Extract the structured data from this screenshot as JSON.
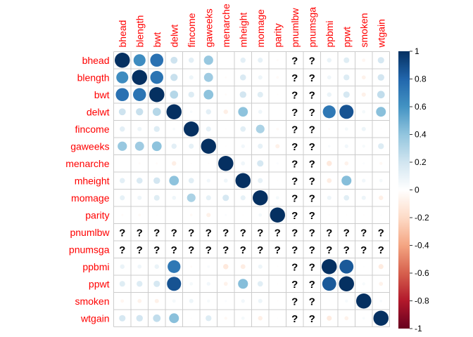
{
  "chart_data": {
    "type": "heatmap",
    "style": "correlation-circles",
    "variables": [
      "bhead",
      "blength",
      "bwt",
      "delwt",
      "fincome",
      "gaweeks",
      "menarche",
      "mheight",
      "momage",
      "parity",
      "pnumlbw",
      "pnumsga",
      "ppbmi",
      "ppwt",
      "smoken",
      "wtgain"
    ],
    "missing_symbol": "?",
    "missing_variables": [
      "pnumlbw",
      "pnumsga"
    ],
    "matrix": [
      [
        1.0,
        0.63,
        0.75,
        0.21,
        0.12,
        0.38,
        0.0,
        0.12,
        0.11,
        -0.02,
        null,
        null,
        0.09,
        0.14,
        -0.05,
        0.18
      ],
      [
        0.63,
        1.0,
        0.74,
        0.23,
        0.08,
        0.36,
        -0.02,
        0.16,
        0.08,
        -0.03,
        null,
        null,
        0.07,
        0.15,
        -0.07,
        0.19
      ],
      [
        0.75,
        0.74,
        1.0,
        0.29,
        0.15,
        0.41,
        -0.02,
        0.19,
        0.14,
        -0.01,
        null,
        null,
        0.09,
        0.18,
        -0.08,
        0.25
      ],
      [
        0.21,
        0.23,
        0.29,
        1.0,
        0.03,
        0.12,
        -0.09,
        0.41,
        0.07,
        0.0,
        null,
        null,
        0.72,
        0.87,
        0.05,
        0.42
      ],
      [
        0.12,
        0.08,
        0.15,
        0.03,
        1.0,
        0.11,
        -0.01,
        0.13,
        0.32,
        -0.03,
        null,
        null,
        -0.02,
        0.05,
        0.08,
        -0.01
      ],
      [
        0.38,
        0.36,
        0.41,
        0.12,
        0.11,
        1.0,
        -0.01,
        0.06,
        0.11,
        -0.08,
        null,
        null,
        0.03,
        0.06,
        0.04,
        0.15
      ],
      [
        0.0,
        -0.02,
        -0.02,
        -0.09,
        -0.01,
        -0.01,
        1.0,
        0.07,
        0.18,
        0.02,
        null,
        null,
        -0.12,
        -0.07,
        0.02,
        -0.04
      ],
      [
        0.12,
        0.16,
        0.19,
        0.41,
        0.13,
        0.06,
        0.07,
        1.0,
        0.11,
        -0.01,
        null,
        null,
        -0.1,
        0.43,
        0.06,
        0.05
      ],
      [
        0.11,
        0.08,
        0.14,
        0.07,
        0.32,
        0.11,
        0.18,
        0.11,
        1.0,
        0.05,
        null,
        null,
        0.08,
        0.13,
        0.08,
        -0.09
      ],
      [
        -0.02,
        -0.03,
        -0.01,
        0.0,
        -0.03,
        -0.08,
        0.02,
        -0.01,
        0.05,
        1.0,
        null,
        null,
        -0.01,
        -0.01,
        -0.01,
        0.01
      ],
      [
        null,
        null,
        null,
        null,
        null,
        null,
        null,
        null,
        null,
        null,
        null,
        null,
        null,
        null,
        null,
        null
      ],
      [
        null,
        null,
        null,
        null,
        null,
        null,
        null,
        null,
        null,
        null,
        null,
        null,
        null,
        null,
        null,
        null
      ],
      [
        0.09,
        0.07,
        0.09,
        0.72,
        -0.02,
        0.03,
        -0.12,
        -0.1,
        0.08,
        -0.01,
        null,
        null,
        1.0,
        0.85,
        0.01,
        -0.11
      ],
      [
        0.14,
        0.15,
        0.18,
        0.87,
        0.05,
        0.06,
        -0.07,
        0.43,
        0.13,
        -0.01,
        null,
        null,
        0.85,
        1.0,
        0.04,
        -0.07
      ],
      [
        -0.05,
        -0.07,
        -0.08,
        0.05,
        0.08,
        0.04,
        0.02,
        0.06,
        0.08,
        -0.01,
        null,
        null,
        0.01,
        0.04,
        1.0,
        0.03
      ],
      [
        0.18,
        0.19,
        0.25,
        0.42,
        -0.01,
        0.15,
        -0.04,
        0.05,
        -0.09,
        0.01,
        null,
        null,
        -0.11,
        -0.07,
        0.03,
        1.0
      ]
    ],
    "colorbar": {
      "min": -1,
      "max": 1,
      "ticks": [
        "1",
        "0.8",
        "0.6",
        "0.4",
        "0.2",
        "0",
        "-0.2",
        "-0.4",
        "-0.6",
        "-0.8",
        "-1"
      ]
    },
    "colors": {
      "label": "#ff0000",
      "grid": "#cccccc",
      "na_text": "#000000",
      "scale": [
        "#67001f",
        "#b2182b",
        "#d6604d",
        "#f4a582",
        "#fddbc7",
        "#ffffff",
        "#d1e5f0",
        "#92c5de",
        "#4393c3",
        "#2166ac",
        "#053061"
      ]
    },
    "xlabel": "",
    "ylabel": "",
    "title": "",
    "grid": true,
    "legend": "right"
  }
}
